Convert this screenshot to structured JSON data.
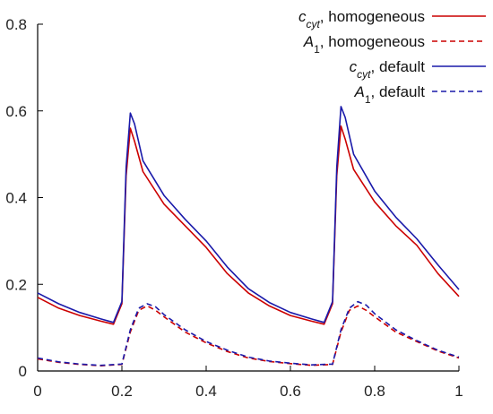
{
  "chart_data": {
    "type": "line",
    "xlim": [
      0,
      1
    ],
    "ylim": [
      0,
      0.8
    ],
    "xticks": [
      0,
      0.2,
      0.4,
      0.6,
      0.8,
      1
    ],
    "xtick_labels": [
      "0",
      "0.2",
      "0.4",
      "0.6",
      "0.8",
      "1"
    ],
    "yticks": [
      0,
      0.2,
      0.4,
      0.6,
      0.8
    ],
    "ytick_labels": [
      "0",
      "0.2",
      "0.4",
      "0.6",
      "0.8"
    ],
    "grid": false,
    "legend_position": "top-right",
    "series": [
      {
        "name": "c_cyt, homogeneous",
        "legend": {
          "main": "c",
          "sub": "cyt",
          "rest": ", homogeneous"
        },
        "color": "#cc0000",
        "dash": "solid",
        "x": [
          0.0,
          0.05,
          0.1,
          0.15,
          0.18,
          0.2,
          0.21,
          0.22,
          0.23,
          0.25,
          0.3,
          0.35,
          0.4,
          0.45,
          0.5,
          0.55,
          0.6,
          0.65,
          0.68,
          0.7,
          0.71,
          0.72,
          0.73,
          0.75,
          0.8,
          0.85,
          0.9,
          0.95,
          1.0
        ],
        "y": [
          0.17,
          0.145,
          0.128,
          0.115,
          0.108,
          0.155,
          0.45,
          0.56,
          0.53,
          0.46,
          0.385,
          0.335,
          0.285,
          0.225,
          0.18,
          0.15,
          0.128,
          0.115,
          0.108,
          0.155,
          0.45,
          0.565,
          0.535,
          0.465,
          0.39,
          0.335,
          0.29,
          0.225,
          0.172
        ]
      },
      {
        "name": "A_1, homogeneous",
        "legend": {
          "main": "A",
          "sub": "1",
          "rest": ", homogeneous"
        },
        "color": "#cc0000",
        "dash": "dashed",
        "x": [
          0.0,
          0.05,
          0.1,
          0.15,
          0.2,
          0.22,
          0.24,
          0.26,
          0.28,
          0.3,
          0.35,
          0.4,
          0.45,
          0.5,
          0.55,
          0.6,
          0.65,
          0.7,
          0.72,
          0.74,
          0.76,
          0.78,
          0.8,
          0.85,
          0.9,
          0.95,
          1.0
        ],
        "y": [
          0.028,
          0.02,
          0.015,
          0.012,
          0.015,
          0.09,
          0.14,
          0.15,
          0.14,
          0.125,
          0.09,
          0.065,
          0.045,
          0.03,
          0.022,
          0.017,
          0.013,
          0.015,
          0.09,
          0.14,
          0.15,
          0.14,
          0.125,
          0.09,
          0.068,
          0.046,
          0.03
        ]
      },
      {
        "name": "c_cyt, default",
        "legend": {
          "main": "c",
          "sub": "cyt",
          "rest": ", default"
        },
        "color": "#1a1aaa",
        "dash": "solid",
        "x": [
          0.0,
          0.05,
          0.1,
          0.15,
          0.18,
          0.2,
          0.21,
          0.22,
          0.23,
          0.25,
          0.3,
          0.35,
          0.4,
          0.45,
          0.5,
          0.55,
          0.6,
          0.65,
          0.68,
          0.7,
          0.71,
          0.72,
          0.73,
          0.75,
          0.8,
          0.85,
          0.9,
          0.95,
          1.0
        ],
        "y": [
          0.18,
          0.155,
          0.135,
          0.12,
          0.112,
          0.16,
          0.47,
          0.595,
          0.57,
          0.485,
          0.405,
          0.35,
          0.3,
          0.24,
          0.19,
          0.158,
          0.135,
          0.12,
          0.112,
          0.16,
          0.47,
          0.61,
          0.585,
          0.5,
          0.415,
          0.355,
          0.305,
          0.245,
          0.188
        ]
      },
      {
        "name": "A_1, default",
        "legend": {
          "main": "A",
          "sub": "1",
          "rest": ", default"
        },
        "color": "#1a1aaa",
        "dash": "dashed",
        "x": [
          0.0,
          0.05,
          0.1,
          0.15,
          0.2,
          0.22,
          0.24,
          0.26,
          0.28,
          0.3,
          0.35,
          0.4,
          0.45,
          0.5,
          0.55,
          0.6,
          0.65,
          0.7,
          0.72,
          0.74,
          0.76,
          0.78,
          0.8,
          0.85,
          0.9,
          0.95,
          1.0
        ],
        "y": [
          0.03,
          0.021,
          0.016,
          0.013,
          0.016,
          0.095,
          0.145,
          0.155,
          0.148,
          0.13,
          0.095,
          0.068,
          0.048,
          0.032,
          0.023,
          0.018,
          0.014,
          0.016,
          0.095,
          0.145,
          0.16,
          0.152,
          0.132,
          0.095,
          0.07,
          0.048,
          0.032
        ]
      }
    ]
  }
}
